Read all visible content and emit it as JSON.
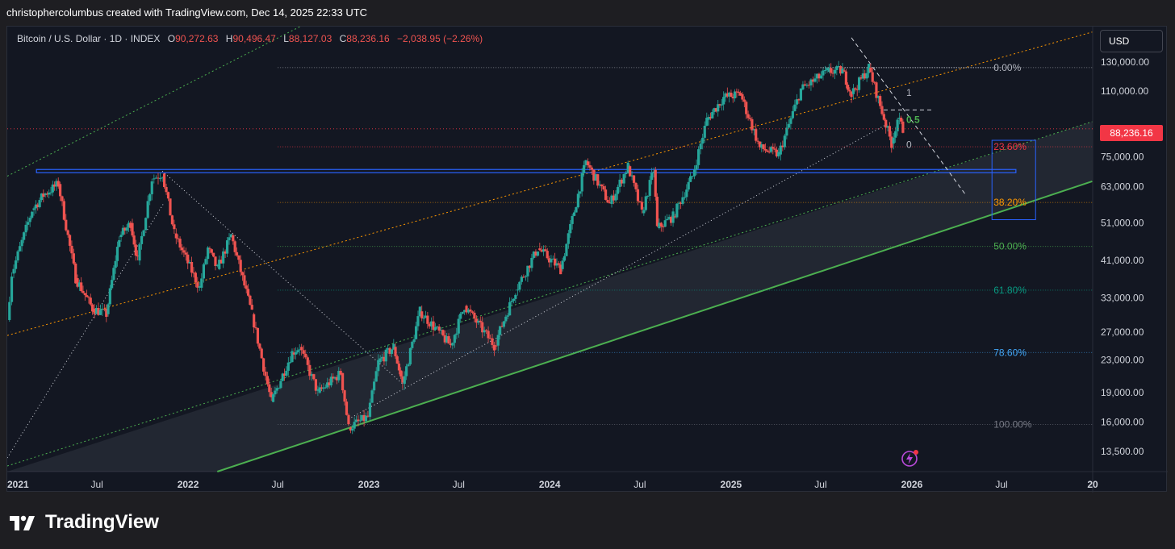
{
  "header": {
    "attribution": "christophercolumbus created with TradingView.com, Dec 14, 2025 22:33 UTC"
  },
  "legend": {
    "symbol": "Bitcoin / U.S. Dollar · 1D · INDEX",
    "open_label": "O",
    "open": "90,272.63",
    "high_label": "H",
    "high": "90,496.47",
    "low_label": "L",
    "low": "88,127.03",
    "close_label": "C",
    "close": "88,236.16",
    "change": "−2,038.95 (−2.26%)"
  },
  "currency_button": "USD",
  "last_price": "88,236.16",
  "footer": {
    "brand": "TradingView",
    "logo": "tradingview-logo-icon"
  },
  "colors": {
    "background": "#131722",
    "up_candle": "#26a69a",
    "down_candle": "#ef5350",
    "channel_orange": "#ff9800",
    "channel_green": "#4caf50",
    "horizontal_blue": "#2962ff"
  },
  "chart_data": {
    "type": "candlestick",
    "title": "Bitcoin / U.S. Dollar · 1D · INDEX",
    "y_scale": "log",
    "ylim": [
      12000,
      160000
    ],
    "xlim": [
      "2021-01-01",
      "2027-01-01"
    ],
    "x_ticks": [
      "2021",
      "Jul",
      "2022",
      "Jul",
      "2023",
      "Jul",
      "2024",
      "Jul",
      "2025",
      "Jul",
      "2026",
      "Jul",
      "20"
    ],
    "x_tick_dates": [
      "2021-01-01",
      "2021-07-01",
      "2022-01-01",
      "2022-07-01",
      "2023-01-01",
      "2023-07-01",
      "2024-01-01",
      "2024-07-01",
      "2025-01-01",
      "2025-07-01",
      "2026-01-01",
      "2026-07-01",
      "2027-01-01"
    ],
    "y_ticks": [
      "130,000.00",
      "110,000.00",
      "75,000.00",
      "63,000.00",
      "51,000.00",
      "41,000.00",
      "33,000.00",
      "27,000.00",
      "23,000.00",
      "19,000.00",
      "16,000.00",
      "13,500.00"
    ],
    "y_tick_values": [
      130000,
      110000,
      75000,
      63000,
      51000,
      41000,
      33000,
      27000,
      23000,
      19000,
      16000,
      13500
    ],
    "fib_levels": [
      {
        "label": "0.00%",
        "price": 126000,
        "color": "#b2b5be"
      },
      {
        "label": "23.60%",
        "price": 79500,
        "color": "#f23645"
      },
      {
        "label": "38.20%",
        "price": 57500,
        "color": "#ff9800"
      },
      {
        "label": "50.00%",
        "price": 44500,
        "color": "#4caf50"
      },
      {
        "label": "61.80%",
        "price": 34500,
        "color": "#089981"
      },
      {
        "label": "78.60%",
        "price": 24000,
        "color": "#42a5f5"
      },
      {
        "label": "100.00%",
        "price": 15800,
        "color": "#787b86"
      }
    ],
    "swing_labels": [
      {
        "label": "1",
        "date": "2025-11-05",
        "price": 109000,
        "color": "#b2b5be"
      },
      {
        "label": "0.5",
        "date": "2025-11-05",
        "price": 93000,
        "color": "#4caf50"
      },
      {
        "label": "0",
        "date": "2025-11-05",
        "price": 80500,
        "color": "#b2b5be"
      }
    ],
    "horizontal_level": 69000,
    "price_path": [
      [
        "2021-01-01",
        29000
      ],
      [
        "2021-01-10",
        38000
      ],
      [
        "2021-02-20",
        55000
      ],
      [
        "2021-03-15",
        60000
      ],
      [
        "2021-04-14",
        64000
      ],
      [
        "2021-05-19",
        37000
      ],
      [
        "2021-06-22",
        31000
      ],
      [
        "2021-07-20",
        30000
      ],
      [
        "2021-08-15",
        47000
      ],
      [
        "2021-09-07",
        51000
      ],
      [
        "2021-09-21",
        41000
      ],
      [
        "2021-10-20",
        66000
      ],
      [
        "2021-11-10",
        68000
      ],
      [
        "2021-12-04",
        48000
      ],
      [
        "2022-01-24",
        35000
      ],
      [
        "2022-02-10",
        44000
      ],
      [
        "2022-03-01",
        39000
      ],
      [
        "2022-03-29",
        47500
      ],
      [
        "2022-05-10",
        30000
      ],
      [
        "2022-06-18",
        18000
      ],
      [
        "2022-07-30",
        24000
      ],
      [
        "2022-08-14",
        24800
      ],
      [
        "2022-09-20",
        19000
      ],
      [
        "2022-11-05",
        21300
      ],
      [
        "2022-11-21",
        15500
      ],
      [
        "2022-12-30",
        16500
      ],
      [
        "2023-01-20",
        22700
      ],
      [
        "2023-02-20",
        24800
      ],
      [
        "2023-03-10",
        20000
      ],
      [
        "2023-04-14",
        30500
      ],
      [
        "2023-06-15",
        25000
      ],
      [
        "2023-07-13",
        31500
      ],
      [
        "2023-09-11",
        25000
      ],
      [
        "2023-10-24",
        34500
      ],
      [
        "2023-12-08",
        44000
      ],
      [
        "2024-01-23",
        39000
      ],
      [
        "2024-03-14",
        73000
      ],
      [
        "2024-05-01",
        57000
      ],
      [
        "2024-06-07",
        71000
      ],
      [
        "2024-07-05",
        54000
      ],
      [
        "2024-07-29",
        69500
      ],
      [
        "2024-08-05",
        49500
      ],
      [
        "2024-09-06",
        53000
      ],
      [
        "2024-10-15",
        67000
      ],
      [
        "2024-11-13",
        93000
      ],
      [
        "2024-12-17",
        106000
      ],
      [
        "2025-01-20",
        108000
      ],
      [
        "2025-02-28",
        79000
      ],
      [
        "2025-04-07",
        76000
      ],
      [
        "2025-05-22",
        111000
      ],
      [
        "2025-07-14",
        123000
      ],
      [
        "2025-08-14",
        124000
      ],
      [
        "2025-09-01",
        108000
      ],
      [
        "2025-10-06",
        126000
      ],
      [
        "2025-11-21",
        81000
      ],
      [
        "2025-12-03",
        93500
      ],
      [
        "2025-12-14",
        88236
      ]
    ]
  }
}
